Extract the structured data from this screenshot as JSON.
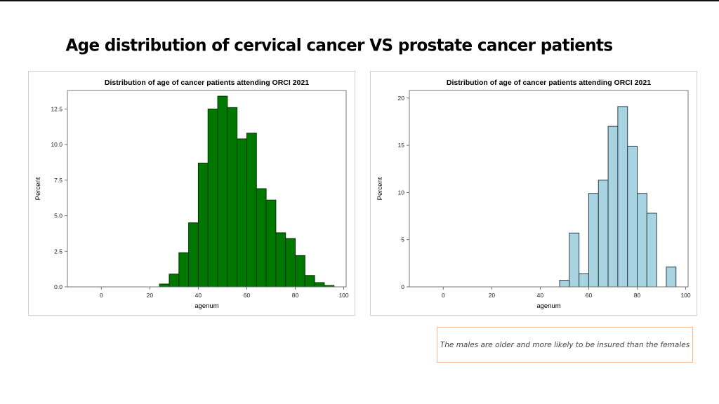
{
  "slide": {
    "title": "Age distribution of cervical cancer VS prostate cancer patients",
    "note": "The males are older and more likely to be insured than the females"
  },
  "chart_data": [
    {
      "type": "bar",
      "title": "Distribution of age of cancer patients attending ORCI 2021",
      "xlabel": "agenum",
      "ylabel": "Percent",
      "xlim": [
        -14,
        101
      ],
      "ylim": [
        0,
        13.8
      ],
      "xticks": [
        0,
        20,
        40,
        60,
        80,
        100
      ],
      "yticks": [
        0.0,
        2.5,
        5.0,
        7.5,
        10.0,
        12.5
      ],
      "ytick_labels": [
        "0.0",
        "2.5",
        "5.0",
        "7.5",
        "10.0",
        "12.5"
      ],
      "bin_width": 4,
      "bins": [
        {
          "x": 24,
          "value": 0.2
        },
        {
          "x": 28,
          "value": 0.9
        },
        {
          "x": 32,
          "value": 2.4
        },
        {
          "x": 36,
          "value": 4.5
        },
        {
          "x": 40,
          "value": 8.7
        },
        {
          "x": 44,
          "value": 12.5
        },
        {
          "x": 48,
          "value": 13.4
        },
        {
          "x": 52,
          "value": 12.6
        },
        {
          "x": 56,
          "value": 10.4
        },
        {
          "x": 60,
          "value": 10.8
        },
        {
          "x": 64,
          "value": 6.9
        },
        {
          "x": 68,
          "value": 6.1
        },
        {
          "x": 72,
          "value": 3.8
        },
        {
          "x": 76,
          "value": 3.4
        },
        {
          "x": 80,
          "value": 2.2
        },
        {
          "x": 84,
          "value": 0.8
        },
        {
          "x": 88,
          "value": 0.3
        },
        {
          "x": 92,
          "value": 0.1
        }
      ],
      "bar_color": "#007800",
      "grid": false
    },
    {
      "type": "bar",
      "title": "Distribution of age of cancer patients attending ORCI 2021",
      "xlabel": "agenum",
      "ylabel": "Percent",
      "xlim": [
        -14,
        101
      ],
      "ylim": [
        0,
        20.8
      ],
      "xticks": [
        0,
        20,
        40,
        60,
        80,
        100
      ],
      "yticks": [
        0,
        5,
        10,
        15,
        20
      ],
      "ytick_labels": [
        "0",
        "5",
        "10",
        "15",
        "20"
      ],
      "bin_width": 4,
      "bins": [
        {
          "x": 48,
          "value": 0.7
        },
        {
          "x": 52,
          "value": 5.7
        },
        {
          "x": 56,
          "value": 1.4
        },
        {
          "x": 60,
          "value": 9.9
        },
        {
          "x": 64,
          "value": 11.3
        },
        {
          "x": 68,
          "value": 17.0
        },
        {
          "x": 72,
          "value": 19.1
        },
        {
          "x": 76,
          "value": 14.9
        },
        {
          "x": 80,
          "value": 9.9
        },
        {
          "x": 84,
          "value": 7.8
        },
        {
          "x": 92,
          "value": 2.1
        }
      ],
      "bar_color": "#a8d4e2",
      "grid": false
    }
  ]
}
